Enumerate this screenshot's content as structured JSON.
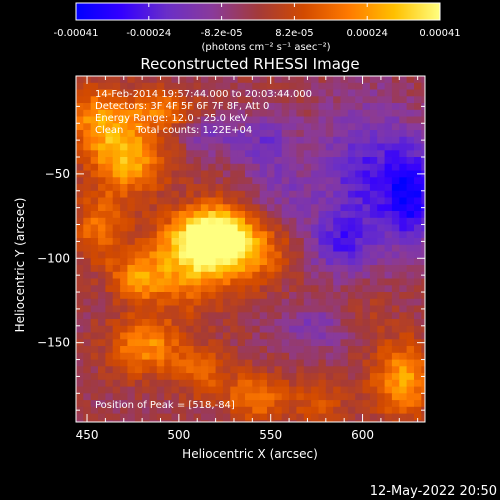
{
  "chart_data": {
    "type": "heatmap",
    "title": "Reconstructed RHESSI Image",
    "xlabel": "Heliocentric X (arcsec)",
    "ylabel": "Heliocentric Y (arcsec)",
    "xlim": [
      444,
      634
    ],
    "ylim": [
      -197,
      8
    ],
    "xticks": [
      450,
      500,
      550,
      600
    ],
    "yticks": [
      -50,
      -100,
      -150
    ],
    "colorbar": {
      "range": [
        -0.00041,
        0.00041
      ],
      "ticks": [
        "-0.00041",
        "-0.00024",
        "-8.2e-05",
        "8.2e-05",
        "0.00024",
        "0.00041"
      ],
      "units": "(photons cm⁻² s⁻¹ asec⁻²)",
      "stops": [
        "#0000ff",
        "#3300ff",
        "#6a2ec8",
        "#8a3a9a",
        "#a33a3a",
        "#d24a00",
        "#ff7a00",
        "#ffc000",
        "#ffff80"
      ]
    },
    "annotations": {
      "line1": "14-Feb-2014 19:57:44.000 to 20:03:44.000",
      "line2": "Detectors: 3F 4F 5F 6F 7F 8F, Att 0",
      "line3": "Energy Range: 12.0 - 25.0 keV",
      "line4": "Clean    Total counts: 1.22E+04",
      "peak": "Position of Peak = [518,-84]"
    },
    "sources": [
      {
        "x": 518,
        "y": -84,
        "value": 0.00041,
        "sx": 14,
        "sy": 12
      },
      {
        "x": 505,
        "y": -100,
        "value": 0.0003,
        "sx": 18,
        "sy": 18
      },
      {
        "x": 540,
        "y": -95,
        "value": 0.00018,
        "sx": 14,
        "sy": 12
      },
      {
        "x": 470,
        "y": -40,
        "value": 0.0003,
        "sx": 14,
        "sy": 14
      },
      {
        "x": 455,
        "y": -15,
        "value": 0.00025,
        "sx": 14,
        "sy": 14
      },
      {
        "x": 490,
        "y": -10,
        "value": 0.0002,
        "sx": 12,
        "sy": 8
      },
      {
        "x": 455,
        "y": -80,
        "value": 0.0002,
        "sx": 10,
        "sy": 14
      },
      {
        "x": 475,
        "y": -110,
        "value": 0.00022,
        "sx": 10,
        "sy": 10
      },
      {
        "x": 480,
        "y": -150,
        "value": 0.00025,
        "sx": 14,
        "sy": 12
      },
      {
        "x": 510,
        "y": -165,
        "value": 0.00018,
        "sx": 10,
        "sy": 10
      },
      {
        "x": 540,
        "y": -180,
        "value": 0.00022,
        "sx": 12,
        "sy": 10
      },
      {
        "x": 575,
        "y": -185,
        "value": 0.00015,
        "sx": 10,
        "sy": 10
      },
      {
        "x": 620,
        "y": -170,
        "value": 0.00028,
        "sx": 12,
        "sy": 16
      },
      {
        "x": 600,
        "y": -130,
        "value": 5e-05,
        "sx": 10,
        "sy": 10
      },
      {
        "x": 600,
        "y": -50,
        "value": -0.00022,
        "sx": 18,
        "sy": 30
      },
      {
        "x": 625,
        "y": -60,
        "value": -0.0003,
        "sx": 10,
        "sy": 20
      },
      {
        "x": 585,
        "y": -90,
        "value": -0.00018,
        "sx": 12,
        "sy": 12
      },
      {
        "x": 545,
        "y": -30,
        "value": -0.00016,
        "sx": 12,
        "sy": 12
      },
      {
        "x": 515,
        "y": -25,
        "value": -0.00012,
        "sx": 10,
        "sy": 8
      },
      {
        "x": 570,
        "y": -140,
        "value": -0.00012,
        "sx": 14,
        "sy": 10
      },
      {
        "x": 555,
        "y": -60,
        "value": -0.0001,
        "sx": 12,
        "sy": 12
      }
    ]
  },
  "timestamp": "12-May-2022 20:50"
}
